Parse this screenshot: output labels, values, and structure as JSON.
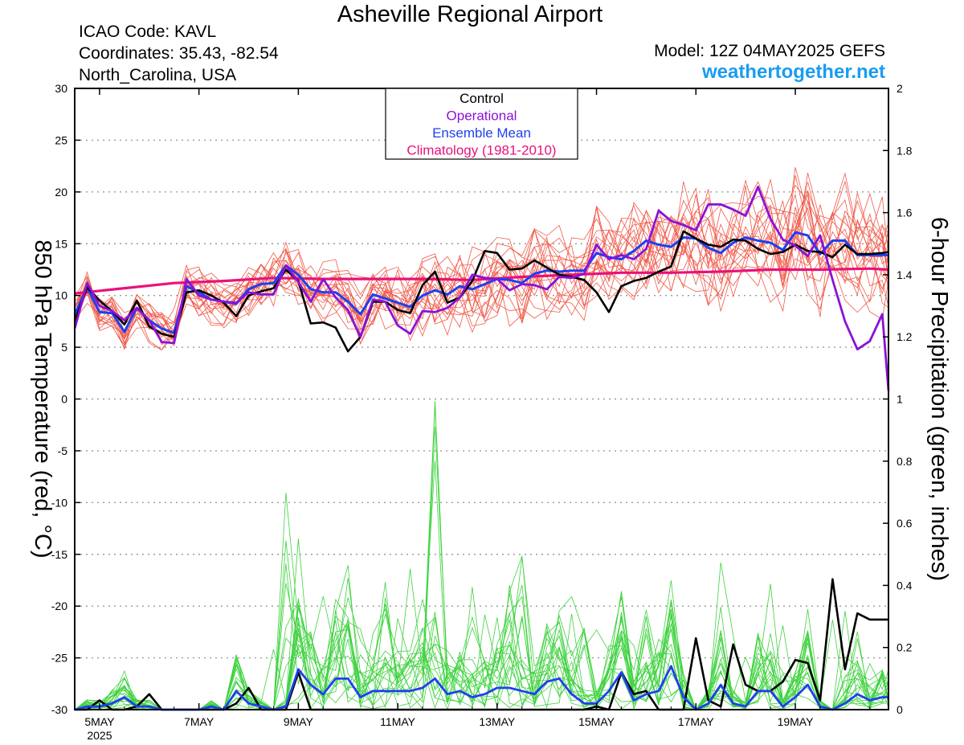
{
  "header": {
    "title": "Asheville Regional Airport",
    "icao": "ICAO Code: KAVL",
    "coords": "Coordinates: 35.43, -82.54",
    "region": "North_Carolina, USA",
    "model": "Model: 12Z 04MAY2025 GEFS",
    "site": "weathertogether.net"
  },
  "chart_data": {
    "type": "line",
    "ylabel_left": "850 hPa Temperature (red, °C)",
    "ylabel_right": "6-hour Precipitation (green, inches)",
    "ylim_left": [
      -30,
      30
    ],
    "ylim_right": [
      0,
      2
    ],
    "yticks_left": [
      "30",
      "25",
      "20",
      "15",
      "10",
      "5",
      "0",
      "-5",
      "-10",
      "-15",
      "-20",
      "-25",
      "-30"
    ],
    "yticks_right": [
      "2",
      "1.8",
      "1.6",
      "1.4",
      "1.2",
      "1",
      "0.8",
      "0.6",
      "0.4",
      "0.2",
      "0"
    ],
    "x_range_hours": [
      0,
      393
    ],
    "xticks": [
      {
        "label": "5MAY",
        "sub": "2025",
        "hour": 12
      },
      {
        "label": "7MAY",
        "hour": 60
      },
      {
        "label": "9MAY",
        "hour": 108
      },
      {
        "label": "11MAY",
        "hour": 156
      },
      {
        "label": "13MAY",
        "hour": 204
      },
      {
        "label": "15MAY",
        "hour": 252
      },
      {
        "label": "17MAY",
        "hour": 300
      },
      {
        "label": "19MAY",
        "hour": 348
      }
    ],
    "grid": true,
    "legend": {
      "position": "top-center",
      "entries": [
        {
          "label": "Control",
          "color": "#000000"
        },
        {
          "label": "Operational",
          "color": "#8a12d8"
        },
        {
          "label": "Ensemble Mean",
          "color": "#1f3ff0"
        },
        {
          "label": "Climatology (1981-2010)",
          "color": "#e8127a"
        }
      ]
    },
    "colors": {
      "member_temp": "#f05a4a",
      "member_precip": "#3ed23e",
      "control": "#000000",
      "operational": "#8a12d8",
      "mean": "#1f3ff0",
      "climatology": "#e8127a"
    },
    "series": {
      "control_temp": {
        "hours": [
          0,
          6,
          12,
          18,
          24,
          30,
          36,
          42,
          48,
          54,
          60,
          66,
          72,
          78,
          84,
          90,
          96,
          102,
          108,
          114,
          120,
          126,
          132,
          138,
          144,
          150,
          156,
          162,
          168,
          174,
          180,
          186,
          192,
          198,
          204,
          210,
          216,
          222,
          228,
          234,
          240,
          246,
          252,
          258,
          264,
          270,
          276,
          282,
          288,
          294,
          300,
          306,
          312,
          318,
          324,
          330,
          336,
          342,
          348,
          354,
          360,
          366,
          372,
          378,
          384,
          390,
          393
        ],
        "values": [
          7.5,
          10.8,
          9.5,
          8.5,
          7.2,
          9.5,
          7,
          6.3,
          6,
          10.3,
          10.5,
          10,
          9.3,
          8,
          10,
          10.4,
          10.7,
          12.5,
          11.4,
          7.3,
          7.4,
          6.9,
          4.6,
          6,
          9.4,
          9.4,
          8.6,
          8.3,
          11,
          12.3,
          9.3,
          9.8,
          11.4,
          14.3,
          14.1,
          12.5,
          12.6,
          13.4,
          12.7,
          12,
          11.8,
          11.5,
          10.3,
          8.4,
          10.9,
          11.4,
          11.7,
          12.3,
          12.8,
          16.2,
          15.5,
          14.9,
          14.7,
          15.4,
          15.3,
          14.5,
          14,
          14.2,
          14.9,
          14.3,
          14.2,
          13.7,
          14.9,
          14,
          14,
          14.1,
          14.2
        ]
      },
      "operational_temp": {
        "hours": [
          0,
          6,
          12,
          18,
          24,
          30,
          36,
          42,
          48,
          54,
          60,
          66,
          72,
          78,
          84,
          90,
          96,
          102,
          108,
          114,
          120,
          126,
          132,
          138,
          144,
          150,
          156,
          162,
          168,
          174,
          180,
          186,
          192,
          198,
          204,
          210,
          216,
          222,
          228,
          234,
          240,
          246,
          252,
          258,
          264,
          270,
          276,
          282,
          288,
          294,
          300,
          306,
          312,
          318,
          324,
          330,
          336,
          342,
          348,
          354,
          360,
          366,
          372,
          378,
          384,
          390,
          393
        ],
        "values": [
          6.8,
          11.2,
          9,
          8.5,
          7.6,
          8.8,
          7.6,
          5.5,
          5.4,
          11.6,
          10,
          9.6,
          9.4,
          9.3,
          10.3,
          10.1,
          10.1,
          12.9,
          11.3,
          9.4,
          11.6,
          9.8,
          8.6,
          6,
          9.6,
          9.4,
          7.1,
          6.3,
          8.5,
          8.4,
          8.8,
          9.8,
          12,
          11.7,
          11.6,
          10.5,
          11.1,
          11,
          10.6,
          11.8,
          11.7,
          12.1,
          14.9,
          13.5,
          13.9,
          13.5,
          14.5,
          18.2,
          17.2,
          16.8,
          16.3,
          18.8,
          18.8,
          18.3,
          17.7,
          20.5,
          17.4,
          15.4,
          14.8,
          13.8,
          15.8,
          11.5,
          7.5,
          4.8,
          5.6,
          8.2,
          0.8
        ]
      },
      "mean_temp": {
        "hours": [
          0,
          6,
          12,
          18,
          24,
          30,
          36,
          42,
          48,
          54,
          60,
          66,
          72,
          78,
          84,
          90,
          96,
          102,
          108,
          114,
          120,
          126,
          132,
          138,
          144,
          150,
          156,
          162,
          168,
          174,
          180,
          186,
          192,
          198,
          204,
          210,
          216,
          222,
          228,
          234,
          240,
          246,
          252,
          258,
          264,
          270,
          276,
          282,
          288,
          294,
          300,
          306,
          312,
          318,
          324,
          330,
          336,
          342,
          348,
          354,
          360,
          366,
          372,
          378,
          384,
          390,
          393
        ],
        "values": [
          8.2,
          10.8,
          8.4,
          8.3,
          6.5,
          8.8,
          7.6,
          6.8,
          6.4,
          10.9,
          10.3,
          9.6,
          9.4,
          9.2,
          10.6,
          11.1,
          11.2,
          12.9,
          12,
          10.6,
          10.3,
          10.3,
          9.4,
          8.2,
          10.1,
          9.7,
          9.3,
          8.9,
          10,
          10.5,
          10.1,
          10.9,
          10.6,
          11.1,
          11.6,
          11.5,
          11.2,
          12.1,
          12.4,
          12.3,
          12.4,
          12.4,
          14.1,
          13.7,
          13.5,
          14.3,
          15.3,
          14.9,
          14.7,
          15.6,
          15.5,
          14.6,
          14.1,
          15.1,
          15.6,
          15.3,
          15.1,
          14.4,
          16.1,
          15.8,
          14,
          15.3,
          15.3,
          13.9,
          13.9,
          13.9,
          13.9
        ]
      },
      "climatology_temp": {
        "hours": [
          0,
          24,
          48,
          72,
          96,
          120,
          144,
          168,
          192,
          216,
          240,
          264,
          288,
          312,
          336,
          360,
          384,
          393
        ],
        "values": [
          10.2,
          10.7,
          11.2,
          11.4,
          11.7,
          11.6,
          11.6,
          11.6,
          11.5,
          11.8,
          12,
          12.2,
          12.2,
          12.3,
          12.5,
          12.5,
          12.6,
          12.5
        ]
      },
      "control_precip": {
        "hours": [
          0,
          6,
          12,
          18,
          24,
          30,
          36,
          42,
          48,
          54,
          60,
          66,
          72,
          78,
          84,
          90,
          96,
          102,
          108,
          114,
          120,
          126,
          132,
          138,
          144,
          150,
          156,
          162,
          168,
          174,
          180,
          186,
          192,
          198,
          204,
          210,
          216,
          222,
          228,
          234,
          240,
          246,
          252,
          258,
          264,
          270,
          276,
          282,
          288,
          294,
          300,
          306,
          312,
          318,
          324,
          330,
          336,
          342,
          348,
          354,
          360,
          366,
          372,
          378,
          384,
          390,
          393
        ],
        "values": [
          0,
          0,
          0.03,
          0,
          0,
          0.01,
          0.05,
          0,
          0,
          0,
          0,
          0,
          0,
          0.02,
          0.07,
          0,
          0,
          0,
          0.12,
          0,
          0,
          0,
          0,
          0,
          0,
          0,
          0,
          0,
          0,
          0,
          0,
          0,
          0,
          0,
          0,
          0,
          0,
          0,
          0,
          0,
          0,
          0,
          0.01,
          0,
          0.12,
          0.05,
          0.06,
          0,
          0,
          0,
          0.23,
          0.03,
          0.01,
          0.21,
          0.08,
          0.06,
          0.06,
          0.09,
          0.16,
          0.15,
          0.03,
          0.42,
          0.13,
          0.31,
          0.29,
          0.29,
          0.29
        ]
      },
      "mean_precip": {
        "hours": [
          0,
          6,
          12,
          18,
          24,
          30,
          36,
          42,
          48,
          54,
          60,
          66,
          72,
          78,
          84,
          90,
          96,
          102,
          108,
          114,
          120,
          126,
          132,
          138,
          144,
          150,
          156,
          162,
          168,
          174,
          180,
          186,
          192,
          198,
          204,
          210,
          216,
          222,
          228,
          234,
          240,
          246,
          252,
          258,
          264,
          270,
          276,
          282,
          288,
          294,
          300,
          306,
          312,
          318,
          324,
          330,
          336,
          342,
          348,
          354,
          360,
          366,
          372,
          378,
          384,
          390,
          393
        ],
        "values": [
          0,
          0.01,
          0.01,
          0.02,
          0.04,
          0.01,
          0.01,
          0,
          0,
          0,
          0,
          0.01,
          0,
          0.06,
          0.02,
          0.01,
          0,
          0.01,
          0.13,
          0.08,
          0.05,
          0.1,
          0.1,
          0.04,
          0.06,
          0.06,
          0.06,
          0.06,
          0.07,
          0.1,
          0.05,
          0.06,
          0.04,
          0.05,
          0.07,
          0.07,
          0.06,
          0.05,
          0.09,
          0.1,
          0.05,
          0.02,
          0.02,
          0.06,
          0.12,
          0.03,
          0.05,
          0.06,
          0.14,
          0.04,
          0,
          0.02,
          0.08,
          0.02,
          0.01,
          0.06,
          0.06,
          0.01,
          0.04,
          0.08,
          0.01,
          0,
          0.02,
          0.05,
          0.03,
          0.04,
          0.04
        ]
      }
    }
  }
}
